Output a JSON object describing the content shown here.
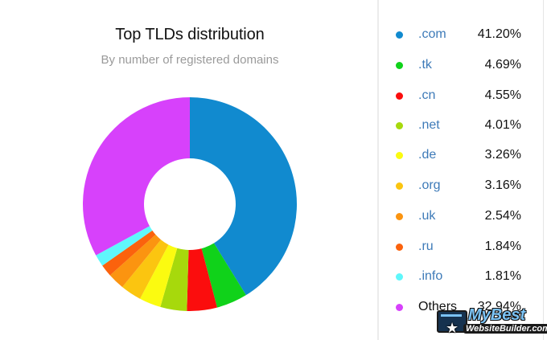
{
  "chart_data": {
    "type": "pie",
    "variant": "donut",
    "title": "Top TLDs distribution",
    "subtitle": "By number of registered domains",
    "start_angle": "top",
    "direction": "clockwise",
    "legend_position": "right",
    "categories": [
      ".com",
      ".tk",
      ".cn",
      ".net",
      ".de",
      ".org",
      ".uk",
      ".ru",
      ".info",
      "Others"
    ],
    "values": [
      41.2,
      4.69,
      4.55,
      4.01,
      3.26,
      3.16,
      2.54,
      1.84,
      1.81,
      32.94
    ],
    "labels": [
      "41.20%",
      "4.69%",
      "4.55%",
      "4.01%",
      "3.26%",
      "3.16%",
      "2.54%",
      "1.84%",
      "1.81%",
      "32.94%"
    ],
    "colors": [
      "#118acf",
      "#10d21a",
      "#fb0d0d",
      "#a7d90c",
      "#fbfb10",
      "#fbc510",
      "#fb9410",
      "#fb620d",
      "#5ff7fb",
      "#d741fb"
    ],
    "units": "%"
  },
  "header": {
    "title": "Top TLDs distribution",
    "subtitle": "By number of registered domains"
  },
  "legend": {
    "items": [
      {
        "label": ".com",
        "value": "41.20%"
      },
      {
        "label": ".tk",
        "value": "4.69%"
      },
      {
        "label": ".cn",
        "value": "4.55%"
      },
      {
        "label": ".net",
        "value": "4.01%"
      },
      {
        "label": ".de",
        "value": "3.26%"
      },
      {
        "label": ".org",
        "value": "3.16%"
      },
      {
        "label": ".uk",
        "value": "2.54%"
      },
      {
        "label": ".ru",
        "value": "1.84%"
      },
      {
        "label": ".info",
        "value": "1.81%"
      },
      {
        "label": "Others",
        "value": "32.94%"
      }
    ]
  },
  "watermark": {
    "top": "MyBest",
    "bottom": "WebsiteBuilder.com"
  }
}
